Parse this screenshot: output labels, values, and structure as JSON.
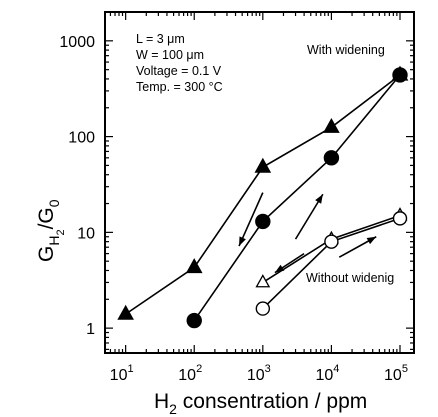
{
  "chart_data": {
    "type": "scatter",
    "xlabel": {
      "base": "H",
      "sub": "2",
      "rest": " consentration / ppm"
    },
    "ylabel": {
      "base": "G",
      "sub1": "H",
      "sub2": "2",
      "rest": "/G",
      "sub3": "0"
    },
    "x_scale": "log",
    "y_scale": "log",
    "xlim": [
      5,
      160000
    ],
    "ylim": [
      0.55,
      2000
    ],
    "x_ticks": [
      {
        "value": 10,
        "base": "10",
        "exp": "1"
      },
      {
        "value": 100,
        "base": "10",
        "exp": "2"
      },
      {
        "value": 1000,
        "base": "10",
        "exp": "3"
      },
      {
        "value": 10000,
        "base": "10",
        "exp": "4"
      },
      {
        "value": 100000,
        "base": "10",
        "exp": "5"
      }
    ],
    "y_ticks": [
      {
        "value": 1,
        "label": "1"
      },
      {
        "value": 10,
        "label": "10"
      },
      {
        "value": 100,
        "label": "100"
      },
      {
        "value": 1000,
        "label": "1000"
      }
    ],
    "grid": false,
    "conditions": [
      "L = 3 μm",
      "W = 100 μm",
      "Voltage = 0.1 V",
      "Temp. = 300 °C"
    ],
    "annotations": {
      "with": "With widening",
      "without": "Without widenig"
    },
    "series": [
      {
        "marker": "triangle",
        "filled": true,
        "connected": true,
        "x": [
          10,
          100,
          1000,
          10000,
          100000
        ],
        "y": [
          1.4,
          4.3,
          48,
          125,
          440
        ]
      },
      {
        "marker": "circle",
        "filled": true,
        "connected": true,
        "x": [
          100,
          1000,
          10000,
          100000
        ],
        "y": [
          1.2,
          13,
          60,
          440
        ]
      },
      {
        "marker": "triangle",
        "filled": false,
        "connected": true,
        "x": [
          1000,
          10000,
          100000
        ],
        "y": [
          3.0,
          8.5,
          15
        ]
      },
      {
        "marker": "circle",
        "filled": false,
        "connected": true,
        "x": [
          1000,
          10000,
          100000
        ],
        "y": [
          1.6,
          8.0,
          14
        ]
      }
    ],
    "arrows": [
      {
        "from": [
          1000,
          26
        ],
        "to": [
          450,
          7.2
        ]
      },
      {
        "from": [
          3000,
          8.5
        ],
        "to": [
          7500,
          25
        ]
      },
      {
        "from": [
          4000,
          6.0
        ],
        "to": [
          1500,
          3.8
        ]
      },
      {
        "from": [
          13000,
          5.5
        ],
        "to": [
          45000,
          9.0
        ]
      }
    ]
  }
}
